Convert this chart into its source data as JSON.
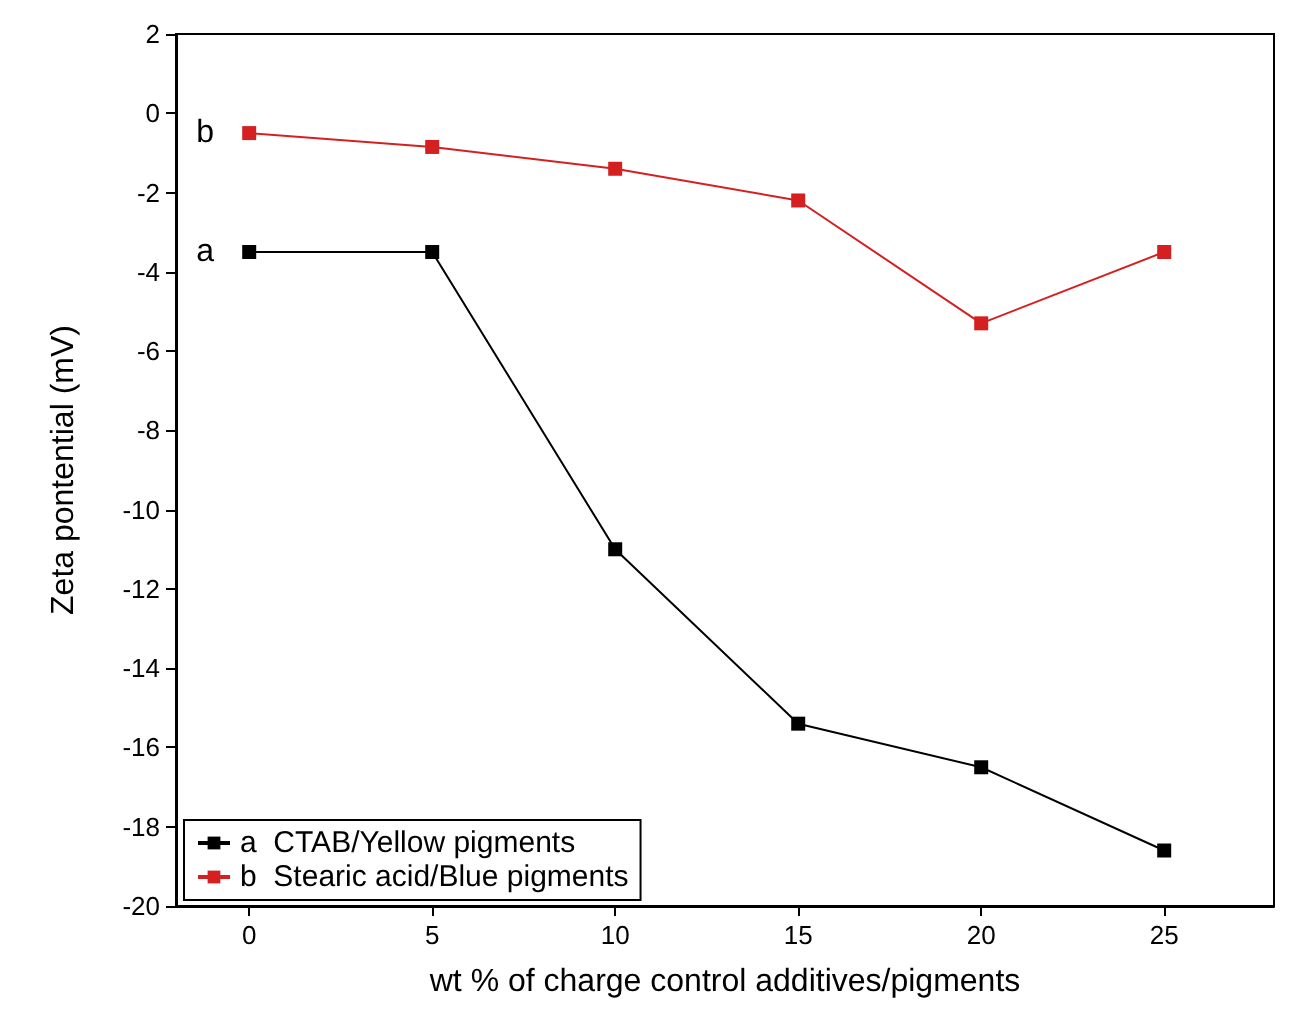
{
  "chart_data": {
    "type": "line",
    "xlabel": "wt % of charge control additives/pigments",
    "ylabel": "Zeta pontential (mV)",
    "x": [
      0,
      5,
      10,
      15,
      20,
      25
    ],
    "series": [
      {
        "name": "a  CTAB/Yellow pigments",
        "color": "#000000",
        "values": [
          -3.5,
          -3.5,
          -11,
          -15.4,
          -16.5,
          -18.6
        ]
      },
      {
        "name": "b  Stearic acid/Blue pigments",
        "color": "#d42020",
        "values": [
          -0.5,
          -0.85,
          -1.4,
          -2.2,
          -5.3,
          -3.5
        ]
      }
    ],
    "annotations": [
      "a",
      "b"
    ],
    "xlim": [
      -2,
      28
    ],
    "xticks": [
      0,
      5,
      10,
      15,
      20,
      25
    ],
    "ylim": [
      -20,
      2
    ],
    "yticks": [
      -20,
      -18,
      -16,
      -14,
      -12,
      -10,
      -8,
      -6,
      -4,
      -2,
      0,
      2
    ],
    "grid": false,
    "legend": "bottom left",
    "marker": "square",
    "line_style": "solid"
  }
}
